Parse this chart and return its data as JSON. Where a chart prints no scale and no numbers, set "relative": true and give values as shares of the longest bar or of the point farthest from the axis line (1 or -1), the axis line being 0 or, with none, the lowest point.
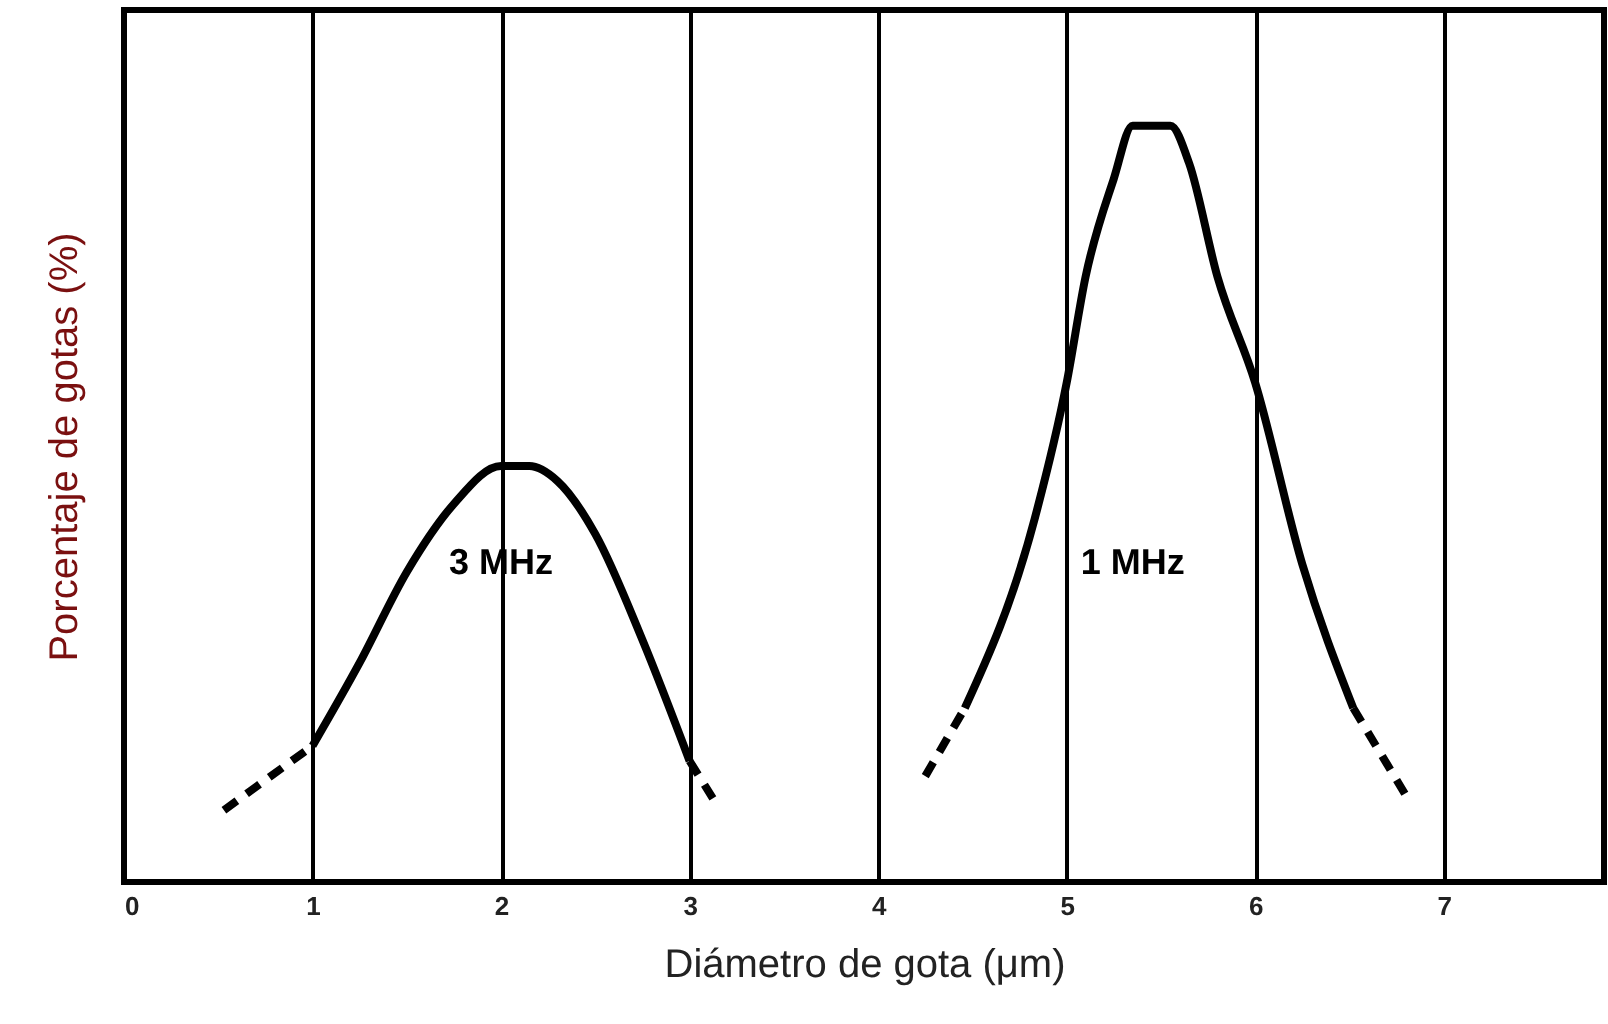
{
  "chart_data": {
    "type": "line",
    "relative": true,
    "xlabel": "Diámetro de gota (μm)",
    "ylabel": "Porcentaje de gotas (%)",
    "xlim": [
      0,
      7.85
    ],
    "xticks": [
      0,
      1,
      2,
      3,
      4,
      5,
      6,
      7
    ],
    "grid": "x",
    "marker": "none",
    "series": [
      {
        "name": "3 MHz",
        "color": "#000000",
        "line_style": "solid",
        "x": [
          1.0,
          1.25,
          1.5,
          1.75,
          2.0,
          2.15,
          2.3,
          2.5,
          2.75,
          3.0
        ],
        "values": [
          0.18,
          0.29,
          0.41,
          0.5,
          0.55,
          0.55,
          0.53,
          0.46,
          0.32,
          0.16
        ]
      },
      {
        "color": "#000000",
        "line_style": "dashed",
        "x": [
          0.53,
          1.0
        ],
        "values": [
          0.095,
          0.18
        ]
      },
      {
        "color": "#000000",
        "line_style": "dashed",
        "x": [
          3.0,
          3.15
        ],
        "values": [
          0.16,
          0.1
        ]
      },
      {
        "name": "1 MHz",
        "color": "#000000",
        "line_style": "solid",
        "x": [
          4.46,
          4.83,
          5.0,
          5.1,
          5.25,
          5.35,
          5.55,
          5.65,
          5.8,
          6.0,
          6.25,
          6.52
        ],
        "values": [
          0.23,
          0.48,
          0.66,
          0.8,
          0.93,
          1.0,
          1.0,
          0.95,
          0.8,
          0.66,
          0.42,
          0.23
        ]
      },
      {
        "color": "#000000",
        "line_style": "dashed",
        "x": [
          4.25,
          4.46
        ],
        "values": [
          0.14,
          0.23
        ]
      },
      {
        "color": "#000000",
        "line_style": "dashed",
        "x": [
          6.52,
          6.81
        ],
        "values": [
          0.23,
          0.11
        ]
      }
    ]
  }
}
